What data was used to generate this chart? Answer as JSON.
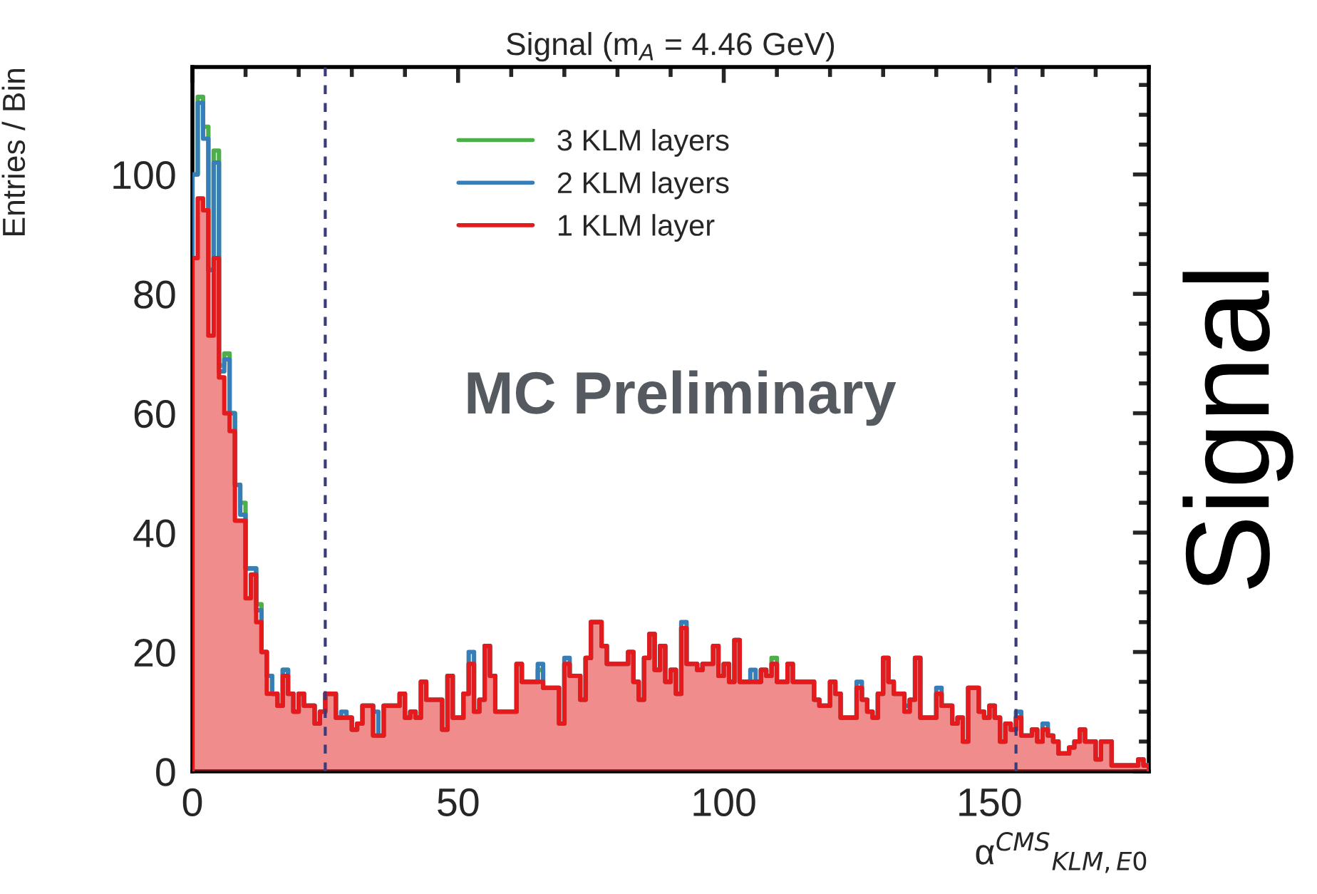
{
  "chart_data": {
    "type": "histogram",
    "title": "Signal (m$_{A}$ = 4.46 GeV)",
    "xlabel": "α$^{CMS}$$_{KLM,E0}$",
    "ylabel": "Entries / Bin",
    "annotations": [
      "MC Preliminary",
      "Signal"
    ],
    "bins": [
      0,
      1,
      2,
      3,
      4,
      5,
      6,
      7,
      8,
      9,
      10,
      11,
      12,
      13,
      14,
      15,
      16,
      17,
      18,
      19,
      20,
      21,
      22,
      23,
      24,
      25,
      26,
      27,
      28,
      29,
      30,
      31,
      32,
      33,
      34,
      35,
      36,
      37,
      38,
      39,
      40,
      41,
      42,
      43,
      44,
      45,
      46,
      47,
      48,
      49,
      50,
      51,
      52,
      53,
      54,
      55,
      56,
      57,
      58,
      59,
      60,
      61,
      62,
      63,
      64,
      65,
      66,
      67,
      68,
      69,
      70,
      71,
      72,
      73,
      74,
      75,
      76,
      77,
      78,
      79,
      80,
      81,
      82,
      83,
      84,
      85,
      86,
      87,
      88,
      89,
      90,
      91,
      92,
      93,
      94,
      95,
      96,
      97,
      98,
      99,
      100,
      101,
      102,
      103,
      104,
      105,
      106,
      107,
      108,
      109,
      110,
      111,
      112,
      113,
      114,
      115,
      116,
      117,
      118,
      119,
      120,
      121,
      122,
      123,
      124,
      125,
      126,
      127,
      128,
      129,
      130,
      131,
      132,
      133,
      134,
      135,
      136,
      137,
      138,
      139,
      140,
      141,
      142,
      143,
      144,
      145,
      146,
      147,
      148,
      149,
      150,
      151,
      152,
      153,
      154,
      155,
      156,
      157,
      158,
      159,
      160,
      161,
      162,
      163,
      164,
      165,
      166,
      167,
      168,
      169,
      170,
      171,
      172,
      173,
      174,
      175,
      176,
      177,
      178,
      179,
      180
    ],
    "series": [
      {
        "name": "3 KLM layers",
        "color": "#4daf4a",
        "values": [
          100,
          113,
          108,
          84,
          104,
          68,
          70,
          60,
          48,
          45,
          34,
          34,
          28,
          20,
          16,
          13,
          11,
          17,
          13,
          10,
          13,
          11,
          11,
          8,
          10,
          13,
          13,
          9,
          9,
          9,
          7,
          8,
          11,
          11,
          6,
          6,
          11,
          11,
          11,
          13,
          9,
          10,
          9,
          15,
          12,
          12,
          12,
          7,
          16,
          9,
          9,
          13,
          18,
          10,
          12,
          21,
          16,
          10,
          10,
          10,
          10,
          18,
          15,
          15,
          15,
          17,
          14,
          14,
          14,
          8,
          18,
          16,
          16,
          12,
          19,
          25,
          25,
          21,
          18,
          18,
          18,
          18,
          20,
          15,
          12,
          19,
          23,
          17,
          21,
          15,
          17,
          13,
          24,
          18,
          18,
          17,
          18,
          18,
          21,
          16,
          18,
          15,
          22,
          15,
          15,
          15,
          15,
          17,
          16,
          19,
          15,
          15,
          18,
          15,
          15,
          15,
          15,
          12,
          11,
          11,
          15,
          13,
          9,
          9,
          9,
          14,
          12,
          10,
          9,
          13,
          19,
          15,
          13,
          13,
          10,
          12,
          19,
          9,
          9,
          9,
          13,
          11,
          11,
          8,
          9,
          5,
          14,
          14,
          10,
          9,
          11,
          9,
          5,
          8,
          7,
          9,
          6,
          6,
          7,
          5,
          7,
          6,
          5,
          3,
          3,
          4,
          5,
          7,
          5,
          5,
          2,
          5,
          5,
          1,
          1,
          1,
          1,
          1,
          2,
          1
        ]
      },
      {
        "name": "2 KLM layers",
        "color": "#377eb8",
        "values": [
          100,
          112,
          106,
          84,
          102,
          67,
          69,
          60,
          48,
          43,
          34,
          34,
          27,
          20,
          16,
          13,
          11,
          17,
          13,
          10,
          13,
          11,
          11,
          8,
          10,
          13,
          13,
          9,
          10,
          9,
          7,
          8,
          11,
          11,
          10,
          6,
          11,
          11,
          11,
          13,
          9,
          10,
          9,
          15,
          12,
          12,
          12,
          7,
          16,
          9,
          9,
          13,
          20,
          10,
          12,
          21,
          16,
          10,
          10,
          10,
          10,
          18,
          15,
          15,
          15,
          18,
          14,
          14,
          14,
          8,
          19,
          16,
          16,
          12,
          19,
          25,
          25,
          21,
          18,
          18,
          18,
          18,
          20,
          15,
          12,
          19,
          23,
          17,
          21,
          15,
          17,
          13,
          25,
          18,
          18,
          17,
          18,
          18,
          21,
          16,
          18,
          15,
          22,
          15,
          15,
          17,
          15,
          17,
          16,
          18,
          15,
          15,
          18,
          15,
          15,
          15,
          15,
          12,
          11,
          11,
          15,
          13,
          9,
          9,
          9,
          15,
          12,
          10,
          9,
          13,
          19,
          15,
          13,
          13,
          11,
          12,
          19,
          9,
          9,
          9,
          14,
          11,
          11,
          8,
          9,
          5,
          14,
          14,
          10,
          9,
          11,
          9,
          5,
          8,
          7,
          10,
          6,
          6,
          7,
          5,
          8,
          6,
          5,
          3,
          3,
          4,
          5,
          7,
          5,
          5,
          2,
          5,
          5,
          1,
          1,
          1,
          1,
          1,
          2,
          1
        ]
      },
      {
        "name": "1 KLM layer",
        "color": "#e41a1c",
        "values": [
          86,
          96,
          94,
          73,
          86,
          66,
          60,
          57,
          42,
          42,
          29,
          33,
          25,
          20,
          13,
          13,
          11,
          16,
          13,
          10,
          13,
          11,
          11,
          8,
          10,
          13,
          13,
          9,
          9,
          9,
          7,
          8,
          11,
          11,
          6,
          6,
          11,
          11,
          11,
          13,
          9,
          10,
          9,
          15,
          12,
          12,
          12,
          7,
          16,
          9,
          9,
          13,
          18,
          10,
          12,
          21,
          16,
          10,
          10,
          10,
          10,
          18,
          15,
          15,
          15,
          15,
          14,
          14,
          14,
          8,
          18,
          16,
          16,
          12,
          19,
          25,
          25,
          21,
          18,
          18,
          18,
          18,
          20,
          15,
          12,
          19,
          23,
          17,
          21,
          15,
          17,
          13,
          24,
          18,
          18,
          17,
          18,
          18,
          21,
          16,
          18,
          15,
          22,
          15,
          15,
          15,
          15,
          17,
          16,
          18,
          15,
          15,
          18,
          15,
          15,
          15,
          15,
          12,
          11,
          11,
          15,
          13,
          9,
          9,
          9,
          14,
          12,
          10,
          9,
          13,
          19,
          15,
          13,
          13,
          10,
          12,
          19,
          9,
          9,
          9,
          13,
          11,
          11,
          8,
          9,
          5,
          14,
          14,
          10,
          9,
          11,
          9,
          5,
          8,
          7,
          9,
          6,
          6,
          7,
          5,
          7,
          6,
          5,
          3,
          3,
          4,
          5,
          7,
          5,
          5,
          2,
          5,
          5,
          1,
          1,
          1,
          1,
          1,
          2,
          1
        ]
      }
    ],
    "xlim": [
      0,
      180
    ],
    "xticks": [
      0,
      {
        "value": 10,
        "label": null
      },
      {
        "value": 20,
        "label": null
      },
      {
        "value": 30,
        "label": null
      },
      {
        "value": 40,
        "label": null
      },
      50,
      {
        "value": 60,
        "label": null
      },
      {
        "value": 70,
        "label": null
      },
      {
        "value": 80,
        "label": null
      },
      {
        "value": 90,
        "label": null
      },
      100,
      {
        "value": 110,
        "label": null
      },
      {
        "value": 120,
        "label": null
      },
      {
        "value": 130,
        "label": null
      },
      {
        "value": 140,
        "label": null
      },
      150,
      {
        "value": 160,
        "label": null
      },
      {
        "value": 170,
        "label": null
      }
    ],
    "ylim": [
      0,
      118
    ],
    "yticks": [
      0,
      {
        "value": 5,
        "label": null
      },
      {
        "value": 10,
        "label": null
      },
      {
        "value": 15,
        "label": null
      },
      20,
      {
        "value": 25,
        "label": null
      },
      {
        "value": 30,
        "label": null
      },
      {
        "value": 35,
        "label": null
      },
      40,
      {
        "value": 45,
        "label": null
      },
      {
        "value": 50,
        "label": null
      },
      {
        "value": 55,
        "label": null
      },
      60,
      {
        "value": 65,
        "label": null
      },
      {
        "value": 70,
        "label": null
      },
      {
        "value": 75,
        "label": null
      },
      80,
      {
        "value": 85,
        "label": null
      },
      {
        "value": 90,
        "label": null
      },
      {
        "value": 95,
        "label": null
      },
      100,
      {
        "value": 105,
        "label": null
      },
      {
        "value": 110,
        "label": null
      },
      {
        "value": 115,
        "label": null
      }
    ],
    "ref_lines": [
      {
        "axis": "x",
        "value": 25,
        "color": "#3b3b7a",
        "line_style": "dashed"
      },
      {
        "axis": "x",
        "value": 155,
        "color": "#3b3b7a",
        "line_style": "dashed"
      }
    ],
    "legend": "top",
    "grid": false
  }
}
